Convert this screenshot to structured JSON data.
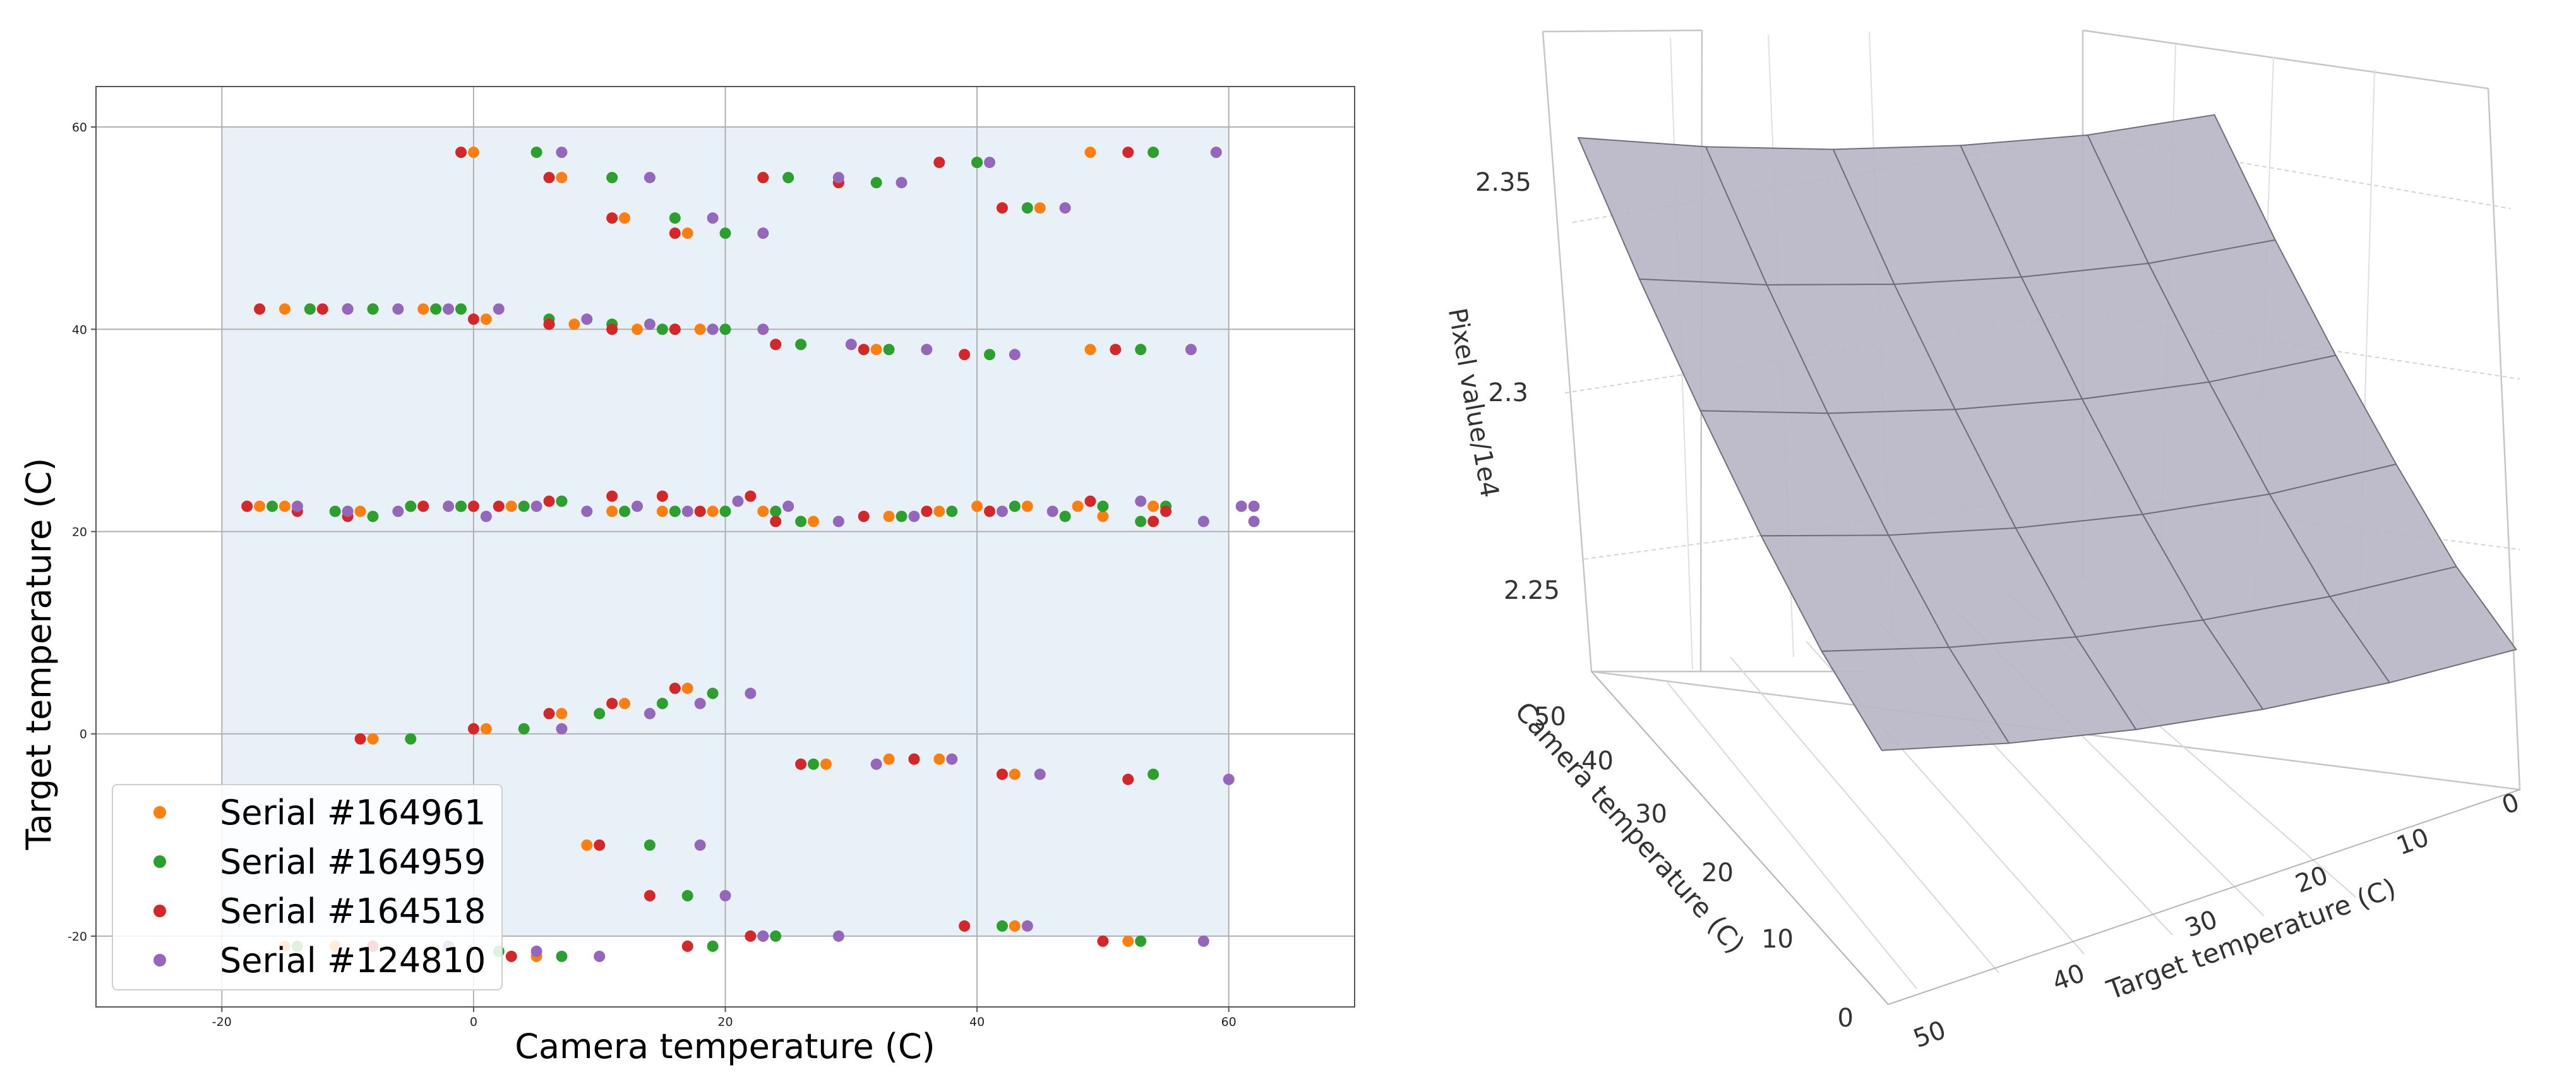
{
  "chart_data": [
    {
      "type": "scatter",
      "xlabel": "Camera temperature (C)",
      "ylabel": "Target temperature (C)",
      "xlim": [
        -30,
        70
      ],
      "ylim": [
        -27,
        64
      ],
      "xticks": [
        -20,
        0,
        20,
        40,
        60
      ],
      "yticks": [
        -20,
        0,
        20,
        40,
        60
      ],
      "xtick_labels": [
        "-20",
        "0",
        "20",
        "40",
        "60"
      ],
      "ytick_labels": [
        "-20",
        "0",
        "20",
        "40",
        "60"
      ],
      "grid": true,
      "shaded_region": {
        "x": [
          -20,
          60
        ],
        "y": [
          -20,
          60
        ],
        "color": "#e8f0f8"
      },
      "legend": "bottom-left",
      "series": [
        {
          "name": "Serial #164961",
          "color": "#ff7f0e",
          "points": [
            [
              -15,
              42
            ],
            [
              -13,
              42
            ],
            [
              -8,
              42
            ],
            [
              -4,
              42
            ],
            [
              1,
              41
            ],
            [
              6,
              40.5
            ],
            [
              8,
              40.5
            ],
            [
              13,
              40
            ],
            [
              16,
              40
            ],
            [
              18,
              40
            ],
            [
              24,
              38.5
            ],
            [
              32,
              38
            ],
            [
              49,
              38
            ],
            [
              0,
              57.5
            ],
            [
              7,
              55
            ],
            [
              12,
              51
            ],
            [
              17,
              49.5
            ],
            [
              23,
              55
            ],
            [
              29,
              54.5
            ],
            [
              40,
              56.5
            ],
            [
              45,
              52
            ],
            [
              49,
              57.5
            ],
            [
              -17,
              22.5
            ],
            [
              -15,
              22.5
            ],
            [
              -9,
              22
            ],
            [
              -5,
              22.5
            ],
            [
              -1,
              22.5
            ],
            [
              3,
              22.5
            ],
            [
              7,
              23
            ],
            [
              11,
              22
            ],
            [
              15,
              22
            ],
            [
              19,
              22
            ],
            [
              23,
              22
            ],
            [
              27,
              21
            ],
            [
              33,
              21.5
            ],
            [
              37,
              22
            ],
            [
              40,
              22.5
            ],
            [
              44,
              22.5
            ],
            [
              48,
              22.5
            ],
            [
              50,
              21.5
            ],
            [
              54,
              22.5
            ],
            [
              -8,
              -0.5
            ],
            [
              1,
              0.5
            ],
            [
              7,
              2
            ],
            [
              12,
              3
            ],
            [
              17,
              4.5
            ],
            [
              28,
              -3
            ],
            [
              33,
              -2.5
            ],
            [
              37,
              -2.5
            ],
            [
              43,
              -4
            ],
            [
              9,
              -11
            ],
            [
              14,
              -16
            ],
            [
              -15,
              -21
            ],
            [
              -11,
              -21
            ],
            [
              5,
              -22
            ],
            [
              23,
              -20
            ],
            [
              43,
              -19
            ],
            [
              52,
              -20.5
            ]
          ]
        },
        {
          "name": "Serial #164959",
          "color": "#2ca02c",
          "points": [
            [
              -13,
              42
            ],
            [
              -8,
              42
            ],
            [
              -3,
              42
            ],
            [
              -1,
              42
            ],
            [
              6,
              41
            ],
            [
              11,
              40.5
            ],
            [
              15,
              40
            ],
            [
              20,
              40
            ],
            [
              26,
              38.5
            ],
            [
              33,
              38
            ],
            [
              41,
              37.5
            ],
            [
              53,
              38
            ],
            [
              5,
              57.5
            ],
            [
              11,
              55
            ],
            [
              16,
              51
            ],
            [
              20,
              49.5
            ],
            [
              25,
              55
            ],
            [
              32,
              54.5
            ],
            [
              40,
              56.5
            ],
            [
              44,
              52
            ],
            [
              54,
              57.5
            ],
            [
              -16,
              22.5
            ],
            [
              -11,
              22
            ],
            [
              -8,
              21.5
            ],
            [
              -5,
              22.5
            ],
            [
              -1,
              22.5
            ],
            [
              4,
              22.5
            ],
            [
              7,
              23
            ],
            [
              12,
              22
            ],
            [
              16,
              22
            ],
            [
              20,
              22
            ],
            [
              24,
              22
            ],
            [
              26,
              21
            ],
            [
              34,
              21.5
            ],
            [
              38,
              22
            ],
            [
              43,
              22.5
            ],
            [
              47,
              21.5
            ],
            [
              50,
              22.5
            ],
            [
              53,
              21
            ],
            [
              55,
              22.5
            ],
            [
              -5,
              -0.5
            ],
            [
              4,
              0.5
            ],
            [
              10,
              2
            ],
            [
              15,
              3
            ],
            [
              19,
              4
            ],
            [
              27,
              -3
            ],
            [
              35,
              -2.5
            ],
            [
              54,
              -4
            ],
            [
              14,
              -11
            ],
            [
              17,
              -16
            ],
            [
              -14,
              -21
            ],
            [
              2,
              -21.5
            ],
            [
              7,
              -22
            ],
            [
              19,
              -21
            ],
            [
              24,
              -20
            ],
            [
              42,
              -19
            ],
            [
              53,
              -20.5
            ]
          ]
        },
        {
          "name": "Serial #164518",
          "color": "#d62728",
          "points": [
            [
              -17,
              42
            ],
            [
              -12,
              42
            ],
            [
              -10,
              42
            ],
            [
              0,
              41
            ],
            [
              6,
              40.5
            ],
            [
              11,
              40
            ],
            [
              16,
              40
            ],
            [
              24,
              38.5
            ],
            [
              31,
              38
            ],
            [
              39,
              37.5
            ],
            [
              51,
              38
            ],
            [
              -1,
              57.5
            ],
            [
              6,
              55
            ],
            [
              11,
              51
            ],
            [
              16,
              49.5
            ],
            [
              23,
              55
            ],
            [
              29,
              54.5
            ],
            [
              37,
              56.5
            ],
            [
              42,
              52
            ],
            [
              52,
              57.5
            ],
            [
              -18,
              22.5
            ],
            [
              -14,
              22
            ],
            [
              -10,
              21.5
            ],
            [
              -4,
              22.5
            ],
            [
              0,
              22.5
            ],
            [
              2,
              22.5
            ],
            [
              6,
              23
            ],
            [
              11,
              23.5
            ],
            [
              15,
              23.5
            ],
            [
              18,
              22
            ],
            [
              22,
              23.5
            ],
            [
              24,
              21
            ],
            [
              31,
              21.5
            ],
            [
              36,
              22
            ],
            [
              41,
              22
            ],
            [
              49,
              23
            ],
            [
              54,
              21
            ],
            [
              55,
              22
            ],
            [
              -9,
              -0.5
            ],
            [
              0,
              0.5
            ],
            [
              6,
              2
            ],
            [
              11,
              3
            ],
            [
              16,
              4.5
            ],
            [
              26,
              -3
            ],
            [
              35,
              -2.5
            ],
            [
              42,
              -4
            ],
            [
              52,
              -4.5
            ],
            [
              10,
              -11
            ],
            [
              14,
              -16
            ],
            [
              -8,
              -21
            ],
            [
              3,
              -22
            ],
            [
              17,
              -21
            ],
            [
              22,
              -20
            ],
            [
              39,
              -19
            ],
            [
              50,
              -20.5
            ]
          ]
        },
        {
          "name": "Serial #124810",
          "color": "#9467bd",
          "points": [
            [
              -10,
              42
            ],
            [
              -6,
              42
            ],
            [
              -2,
              42
            ],
            [
              2,
              42
            ],
            [
              9,
              41
            ],
            [
              14,
              40.5
            ],
            [
              19,
              40
            ],
            [
              23,
              40
            ],
            [
              30,
              38.5
            ],
            [
              36,
              38
            ],
            [
              43,
              37.5
            ],
            [
              57,
              38
            ],
            [
              7,
              57.5
            ],
            [
              14,
              55
            ],
            [
              19,
              51
            ],
            [
              23,
              49.5
            ],
            [
              29,
              55
            ],
            [
              34,
              54.5
            ],
            [
              41,
              56.5
            ],
            [
              47,
              52
            ],
            [
              59,
              57.5
            ],
            [
              -14,
              22.5
            ],
            [
              -10,
              22
            ],
            [
              -6,
              22
            ],
            [
              -2,
              22.5
            ],
            [
              1,
              21.5
            ],
            [
              5,
              22.5
            ],
            [
              9,
              22
            ],
            [
              13,
              22.5
            ],
            [
              17,
              22
            ],
            [
              21,
              23
            ],
            [
              25,
              22.5
            ],
            [
              29,
              21
            ],
            [
              35,
              21.5
            ],
            [
              42,
              22
            ],
            [
              46,
              22
            ],
            [
              53,
              23
            ],
            [
              58,
              21
            ],
            [
              61,
              22.5
            ],
            [
              62,
              21
            ],
            [
              62,
              22.5
            ],
            [
              7,
              0.5
            ],
            [
              14,
              2
            ],
            [
              18,
              3
            ],
            [
              22,
              4
            ],
            [
              32,
              -3
            ],
            [
              38,
              -2.5
            ],
            [
              45,
              -4
            ],
            [
              60,
              -4.5
            ],
            [
              18,
              -11
            ],
            [
              20,
              -16
            ],
            [
              -2,
              -21
            ],
            [
              5,
              -21.5
            ],
            [
              10,
              -22
            ],
            [
              23,
              -20
            ],
            [
              29,
              -20
            ],
            [
              44,
              -19
            ],
            [
              58,
              -20.5
            ]
          ]
        }
      ]
    },
    {
      "type": "surface",
      "zlabel": "Pixel value/1e4",
      "xlabel": "Target temperature (C)",
      "ylabel": "Camera temperature (C)",
      "zticks": [
        "2.25",
        "2.3",
        "2.35"
      ],
      "xticks": [
        "0",
        "10",
        "20",
        "30",
        "40",
        "50"
      ],
      "yticks": [
        "0",
        "10",
        "20",
        "30",
        "40",
        "50"
      ],
      "zlim": [
        2.2,
        2.4
      ],
      "xlim": [
        0,
        50
      ],
      "ylim": [
        0,
        50
      ],
      "surface": {
        "target_grid": [
          0,
          10,
          20,
          30,
          40,
          50
        ],
        "camera_grid": [
          0,
          10,
          20,
          30,
          40,
          50
        ],
        "values": [
          [
            2.246,
            2.249,
            2.254,
            2.261,
            2.27,
            2.281
          ],
          [
            2.251,
            2.255,
            2.261,
            2.269,
            2.279,
            2.291
          ],
          [
            2.262,
            2.266,
            2.273,
            2.282,
            2.293,
            2.306
          ],
          [
            2.275,
            2.28,
            2.288,
            2.298,
            2.31,
            2.324
          ],
          [
            2.29,
            2.296,
            2.305,
            2.316,
            2.329,
            2.344
          ],
          [
            2.308,
            2.315,
            2.325,
            2.337,
            2.351,
            2.367
          ]
        ],
        "color": "#b9b6c6"
      }
    }
  ]
}
